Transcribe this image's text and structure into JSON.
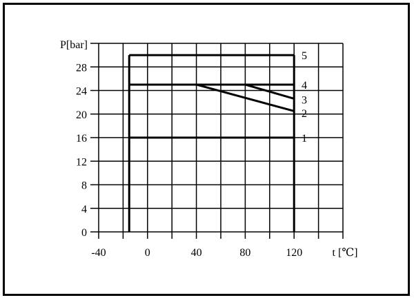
{
  "chart_data": {
    "type": "line",
    "title": "",
    "xlabel": "t [℃]",
    "ylabel": "P[bar]",
    "xlim": [
      -40,
      160
    ],
    "ylim": [
      0,
      32
    ],
    "x_ticks": [
      -40,
      0,
      40,
      80,
      120
    ],
    "y_ticks": [
      0,
      4,
      8,
      12,
      16,
      20,
      24,
      28
    ],
    "x_grid_step": 20,
    "y_grid_step": 4,
    "grid": true,
    "colors": {
      "line": "#000000",
      "background": "#ffffff"
    },
    "boundary": {
      "left_wall": {
        "t": -15,
        "p": [
          0,
          30
        ]
      },
      "right_wall": {
        "t": 120,
        "p": [
          0,
          30
        ]
      }
    },
    "series": [
      {
        "label": "1",
        "points": [
          [
            -15,
            16
          ],
          [
            120,
            16
          ]
        ]
      },
      {
        "label": "2",
        "points": [
          [
            -15,
            25
          ],
          [
            40,
            25
          ],
          [
            120,
            20.5
          ]
        ]
      },
      {
        "label": "3",
        "points": [
          [
            -15,
            25
          ],
          [
            80,
            25
          ],
          [
            120,
            22.6
          ]
        ]
      },
      {
        "label": "4",
        "points": [
          [
            -15,
            25
          ],
          [
            120,
            25
          ]
        ]
      },
      {
        "label": "5",
        "points": [
          [
            -15,
            30
          ],
          [
            120,
            30
          ]
        ]
      }
    ],
    "curve_label_positions": [
      {
        "label": "1",
        "p": 16
      },
      {
        "label": "2",
        "p": 20.2
      },
      {
        "label": "3",
        "p": 22.5
      },
      {
        "label": "4",
        "p": 25
      },
      {
        "label": "5",
        "p": 30
      }
    ]
  }
}
